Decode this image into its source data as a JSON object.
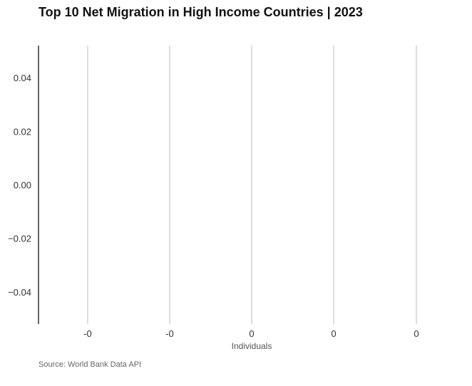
{
  "chart_data": {
    "type": "bar",
    "title": "Top 10 Net Migration in High Income Countries | 2023",
    "xlabel": "Individuals",
    "ylabel": "",
    "categories": [],
    "values": [],
    "x_tick_labels": [
      "-0",
      "-0",
      "0",
      "0",
      "0"
    ],
    "y_tick_labels": [
      "0.04",
      "0.02",
      "0.00",
      "−0.02",
      "−0.04"
    ],
    "y_ticks": [
      0.04,
      0.02,
      0.0,
      -0.02,
      -0.04
    ],
    "ylim": [
      -0.052,
      0.052
    ],
    "grid": "vertical",
    "source": "Source: World Bank Data API",
    "gridline_color": "#bbbbbb",
    "axis_color": "#000000"
  }
}
